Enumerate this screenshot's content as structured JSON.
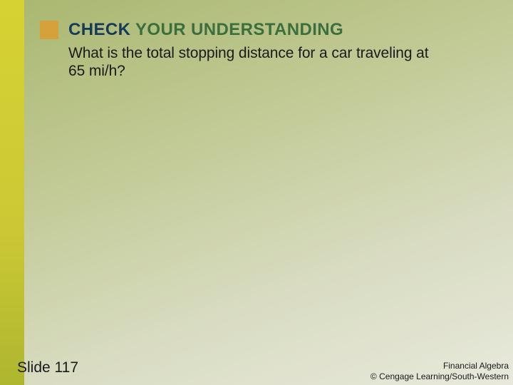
{
  "header": {
    "word1": "CHECK",
    "word2": "YOUR UNDERSTANDING",
    "square_color": "#d6a13a",
    "word1_color": "#173a5c",
    "word2_color": "#3b6f3e",
    "fontsize": 24
  },
  "question": {
    "text": "What is the total stopping distance for a car traveling at 65 mi/h?",
    "fontsize": 21,
    "color": "#1a1a1a"
  },
  "footer": {
    "slide_label": "Slide 117",
    "book_title": "Financial Algebra",
    "copyright": "© Cengage Learning/South-Western"
  },
  "styling": {
    "slide_width": 720,
    "slide_height": 540,
    "left_stripe_width": 34,
    "left_stripe_gradient": [
      "#d6d233",
      "#d0ce34",
      "#cbc835",
      "#aeb62f"
    ],
    "background_gradient": [
      "#a9b76f",
      "#c4cc9a",
      "#d9dcc2",
      "#e8e9dc"
    ],
    "font_family": "Arial"
  }
}
